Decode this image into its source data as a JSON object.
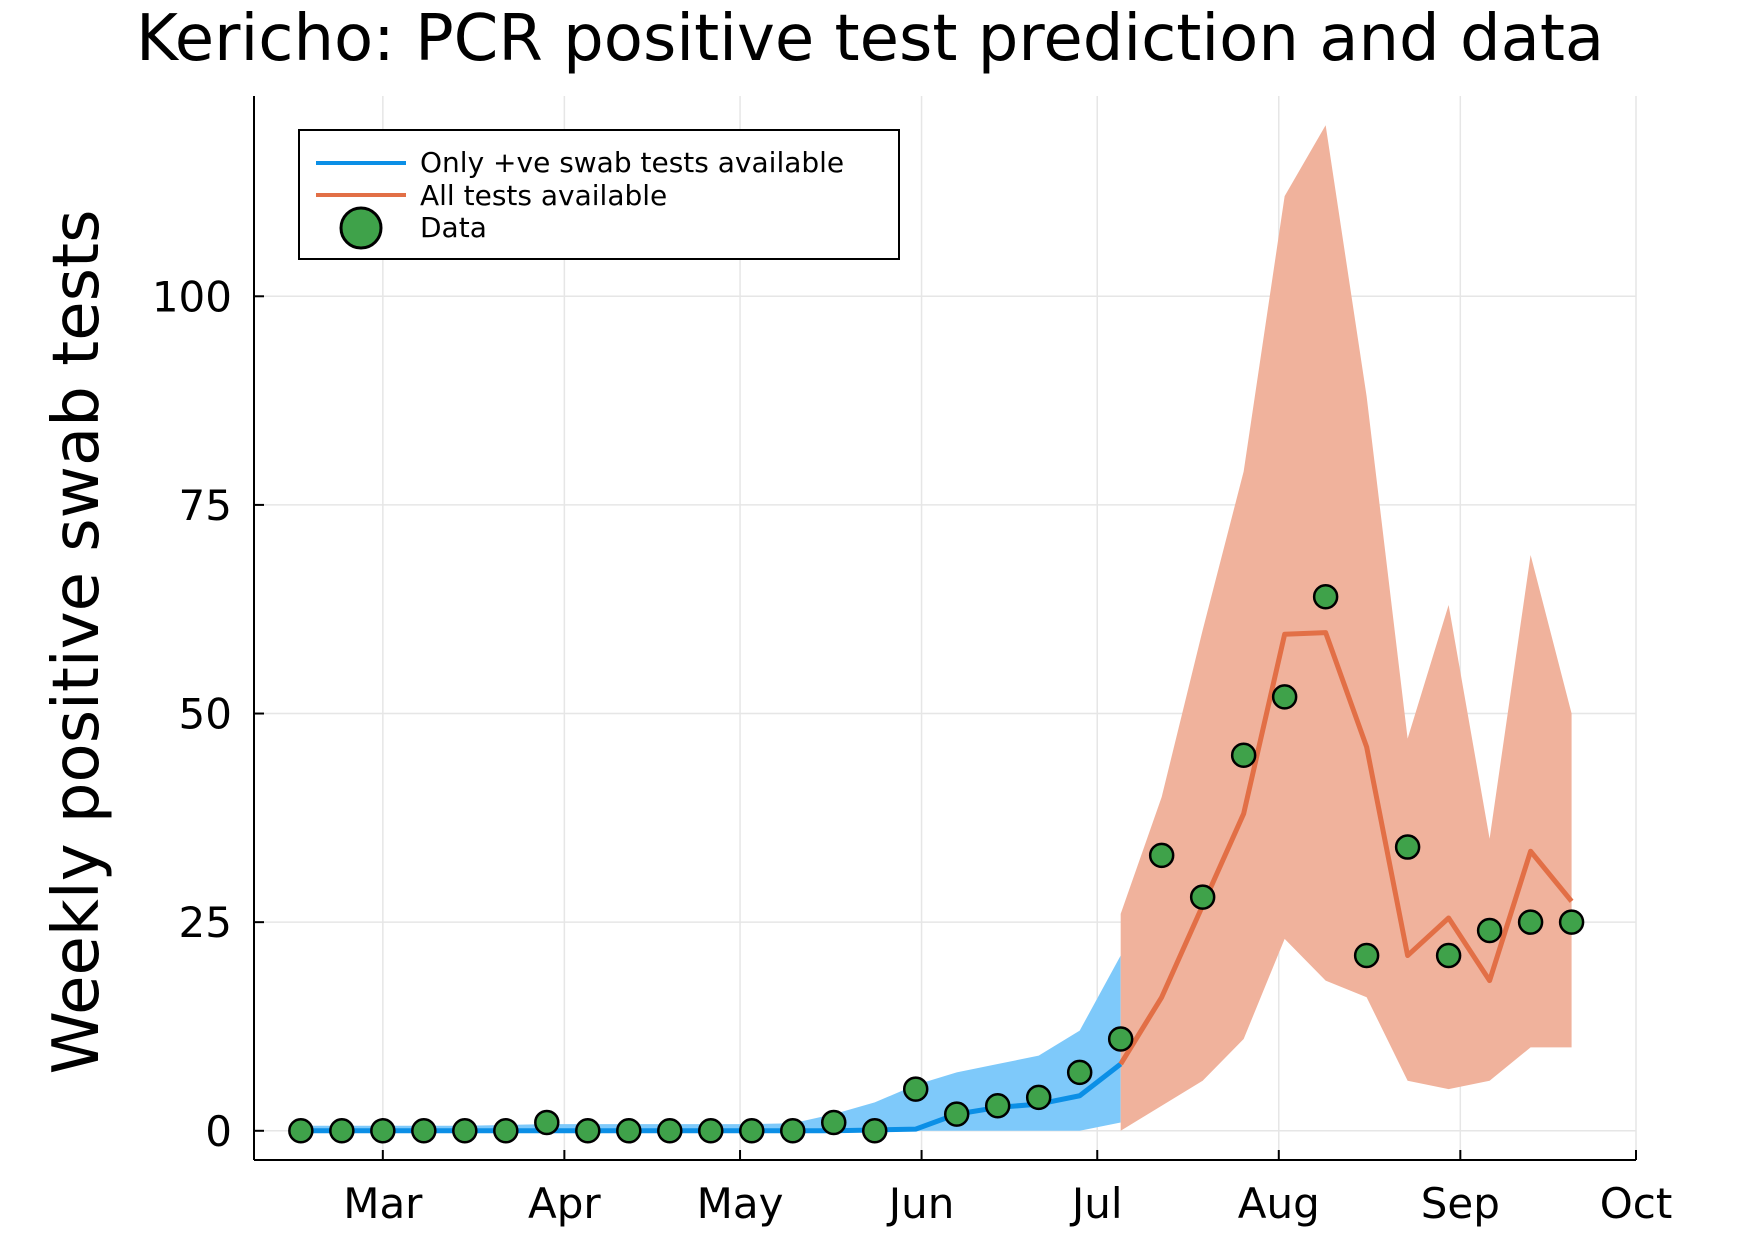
{
  "chart_data": {
    "type": "line",
    "title": "Kericho: PCR positive test prediction and data",
    "ylabel": "Weekly positive swab tests",
    "xlabel": "",
    "xlim": [
      "2020-02-08",
      "2020-10-01"
    ],
    "ylim": [
      -3.5,
      124
    ],
    "x_ticks": [
      {
        "date": "2020-03-01",
        "label": "Mar"
      },
      {
        "date": "2020-04-01",
        "label": "Apr"
      },
      {
        "date": "2020-05-01",
        "label": "May"
      },
      {
        "date": "2020-06-01",
        "label": "Jun"
      },
      {
        "date": "2020-07-01",
        "label": "Jul"
      },
      {
        "date": "2020-08-01",
        "label": "Aug"
      },
      {
        "date": "2020-09-01",
        "label": "Sep"
      },
      {
        "date": "2020-10-01",
        "label": "Oct"
      }
    ],
    "y_ticks": [
      0,
      25,
      50,
      75,
      100
    ],
    "grid": true,
    "legend_position": "top-left",
    "colors": {
      "blue_line": "#0b8fe6",
      "blue_band": "#7ec9fa",
      "orange_line": "#e26f46",
      "orange_band": "#f0b29c",
      "data_fill": "#3fa24a",
      "axis": "#000000",
      "grid": "#e6e6e6"
    },
    "series": [
      {
        "name": "Only +ve swab tests available",
        "kind": "line_band",
        "x": [
          "2020-02-16",
          "2020-02-23",
          "2020-03-01",
          "2020-03-08",
          "2020-03-15",
          "2020-03-22",
          "2020-03-29",
          "2020-04-05",
          "2020-04-12",
          "2020-04-19",
          "2020-04-26",
          "2020-05-03",
          "2020-05-10",
          "2020-05-17",
          "2020-05-24",
          "2020-05-31",
          "2020-06-07",
          "2020-06-14",
          "2020-06-21",
          "2020-06-28",
          "2020-07-05"
        ],
        "y": [
          0,
          0,
          0,
          0,
          0,
          0,
          0,
          0,
          0,
          0,
          0,
          0,
          0,
          0,
          0.1,
          0.2,
          2,
          2.8,
          3.2,
          4.2,
          8
        ],
        "lower": [
          0,
          0,
          0,
          0,
          0,
          0,
          0,
          0,
          0,
          0,
          0,
          0,
          0,
          0,
          0,
          0,
          0,
          0,
          0,
          0,
          1
        ],
        "upper": [
          0.6,
          0.6,
          0.6,
          0.6,
          0.6,
          0.7,
          0.8,
          0.8,
          0.8,
          0.8,
          0.8,
          0.8,
          0.9,
          2,
          3.4,
          5.5,
          7,
          8,
          9,
          12,
          21
        ]
      },
      {
        "name": "All tests available",
        "kind": "line_band",
        "x": [
          "2020-07-05",
          "2020-07-12",
          "2020-07-19",
          "2020-07-26",
          "2020-08-02",
          "2020-08-09",
          "2020-08-16",
          "2020-08-23",
          "2020-08-30",
          "2020-09-06",
          "2020-09-13",
          "2020-09-20"
        ],
        "y": [
          8,
          16,
          27,
          38,
          59.5,
          59.7,
          46,
          21,
          25.5,
          18,
          33.5,
          27.5
        ],
        "lower": [
          0,
          3,
          6,
          11,
          23,
          18,
          16,
          6,
          5,
          6,
          10,
          10
        ],
        "upper": [
          26,
          40,
          60,
          79,
          112,
          120.5,
          88,
          47,
          63,
          35,
          69,
          50
        ]
      },
      {
        "name": "Data",
        "kind": "scatter",
        "x": [
          "2020-02-16",
          "2020-02-23",
          "2020-03-01",
          "2020-03-08",
          "2020-03-15",
          "2020-03-22",
          "2020-03-29",
          "2020-04-05",
          "2020-04-12",
          "2020-04-19",
          "2020-04-26",
          "2020-05-03",
          "2020-05-10",
          "2020-05-17",
          "2020-05-24",
          "2020-05-31",
          "2020-06-07",
          "2020-06-14",
          "2020-06-21",
          "2020-06-28",
          "2020-07-05",
          "2020-07-12",
          "2020-07-19",
          "2020-07-26",
          "2020-08-02",
          "2020-08-09",
          "2020-08-16",
          "2020-08-23",
          "2020-08-30",
          "2020-09-06",
          "2020-09-13",
          "2020-09-20"
        ],
        "y": [
          0,
          0,
          0,
          0,
          0,
          0,
          1,
          0,
          0,
          0,
          0,
          0,
          0,
          1,
          0,
          5,
          2,
          3,
          4,
          7,
          11,
          33,
          28,
          45,
          52,
          64,
          21,
          34,
          21,
          24,
          25,
          25
        ]
      }
    ]
  }
}
